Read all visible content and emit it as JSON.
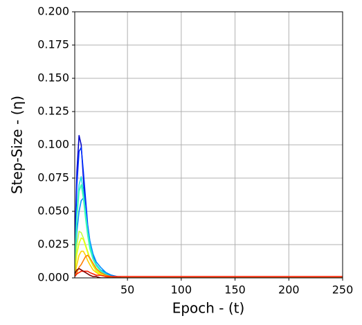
{
  "chart_data": {
    "type": "line",
    "xlabel": "Epoch - (t)",
    "ylabel": "Step-Size - (η)",
    "x": [
      1,
      3,
      5,
      7,
      9,
      11,
      13,
      15,
      18,
      21,
      25,
      30,
      35,
      40,
      45,
      50,
      250
    ],
    "series": [
      {
        "color": "#0000c8",
        "values": [
          0.02,
          0.08,
          0.107,
          0.1,
          0.075,
          0.05,
          0.035,
          0.025,
          0.015,
          0.01,
          0.006,
          0.003,
          0.002,
          0.001,
          0,
          0,
          0
        ]
      },
      {
        "color": "#0030ff",
        "values": [
          0.015,
          0.07,
          0.095,
          0.098,
          0.08,
          0.06,
          0.04,
          0.028,
          0.016,
          0.01,
          0.006,
          0.004,
          0.002,
          0.001,
          0,
          0,
          0
        ]
      },
      {
        "color": "#0090ff",
        "values": [
          0.01,
          0.035,
          0.05,
          0.058,
          0.06,
          0.05,
          0.038,
          0.028,
          0.018,
          0.012,
          0.008,
          0.004,
          0.002,
          0.001,
          0,
          0,
          0
        ]
      },
      {
        "color": "#20e0e0",
        "values": [
          0.01,
          0.05,
          0.07,
          0.076,
          0.065,
          0.05,
          0.035,
          0.025,
          0.015,
          0.01,
          0.006,
          0.003,
          0.001,
          0,
          0,
          0,
          0
        ]
      },
      {
        "color": "#40ffb0",
        "values": [
          0.008,
          0.045,
          0.065,
          0.07,
          0.06,
          0.045,
          0.032,
          0.022,
          0.014,
          0.009,
          0.005,
          0.002,
          0.001,
          0,
          0,
          0,
          0
        ]
      },
      {
        "color": "#c0ff40",
        "values": [
          0.005,
          0.025,
          0.035,
          0.034,
          0.03,
          0.025,
          0.02,
          0.015,
          0.01,
          0.006,
          0.003,
          0.001,
          0,
          0,
          0,
          0,
          0
        ]
      },
      {
        "color": "#e8ff10",
        "values": [
          0.003,
          0.018,
          0.026,
          0.03,
          0.029,
          0.024,
          0.019,
          0.014,
          0.009,
          0.005,
          0.003,
          0.001,
          0,
          0,
          0,
          0,
          0
        ]
      },
      {
        "color": "#ffd000",
        "values": [
          0.002,
          0.01,
          0.017,
          0.02,
          0.02,
          0.017,
          0.013,
          0.01,
          0.006,
          0.004,
          0.002,
          0.001,
          0,
          0,
          0,
          0,
          0
        ]
      },
      {
        "color": "#ff8000",
        "values": [
          0.001,
          0.004,
          0.008,
          0.01,
          0.013,
          0.016,
          0.017,
          0.015,
          0.011,
          0.007,
          0.004,
          0.002,
          0.001,
          0,
          0,
          0,
          0
        ]
      },
      {
        "color": "#ff2000",
        "values": [
          0.001,
          0.003,
          0.004,
          0.005,
          0.005,
          0.005,
          0.005,
          0.004,
          0.003,
          0.002,
          0.002,
          0.001,
          0.001,
          0.001,
          0.001,
          0.001,
          0.001
        ]
      },
      {
        "color": "#800000",
        "values": [
          0.003,
          0.006,
          0.007,
          0.006,
          0.005,
          0.004,
          0.003,
          0.002,
          0.001,
          0.001,
          0,
          0,
          0,
          0,
          0,
          0,
          0
        ]
      }
    ],
    "xlim": [
      1,
      250
    ],
    "xticks": [
      50,
      100,
      150,
      200,
      250
    ],
    "ylim": [
      0,
      0.2
    ],
    "yticks": [
      {
        "value": 0,
        "label": "0.000"
      },
      {
        "value": 0.025,
        "label": "0.025"
      },
      {
        "value": 0.05,
        "label": "0.050"
      },
      {
        "value": 0.075,
        "label": "0.075"
      },
      {
        "value": 0.1,
        "label": "0.100"
      },
      {
        "value": 0.125,
        "label": "0.125"
      },
      {
        "value": 0.15,
        "label": "0.150"
      },
      {
        "value": 0.175,
        "label": "0.175"
      },
      {
        "value": 0.2,
        "label": "0.200"
      }
    ],
    "grid": true
  }
}
